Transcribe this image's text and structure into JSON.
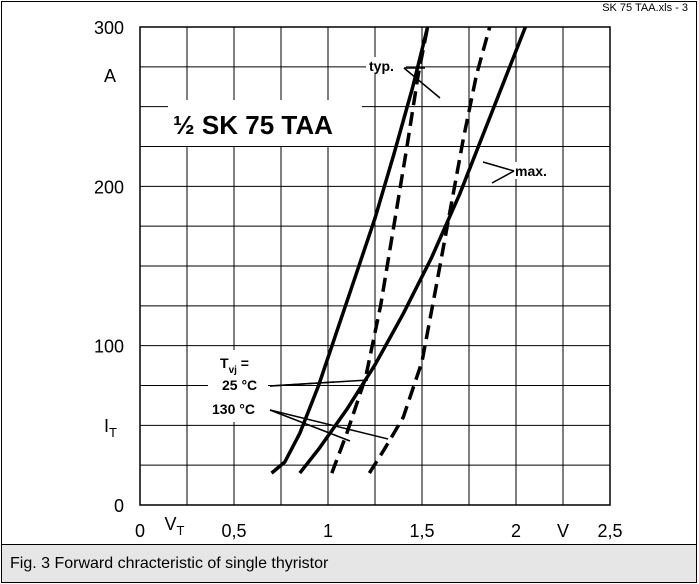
{
  "file_label": "SK 75 TAA.xls - 3",
  "caption": "Fig. 3 Forward chracteristic of single thyristor",
  "chart_data": {
    "type": "line",
    "title": "½ SK 75 TAA",
    "xlabel": "V",
    "ylabel": "A",
    "xlabel_symbol": "V",
    "xlabel_sub": "T",
    "ylabel_symbol": "I",
    "ylabel_sub": "T",
    "xlim": [
      0,
      2.5
    ],
    "ylim": [
      0,
      300
    ],
    "grid": true,
    "x_ticks": [
      {
        "value": 0,
        "label": "0"
      },
      {
        "value": 0.5,
        "label": "0,5"
      },
      {
        "value": 1.0,
        "label": "1"
      },
      {
        "value": 1.5,
        "label": "1,5"
      },
      {
        "value": 2.0,
        "label": "2"
      },
      {
        "value": 2.5,
        "label": "2,5"
      }
    ],
    "y_ticks": [
      {
        "value": 0,
        "label": "0"
      },
      {
        "value": 100,
        "label": "100"
      },
      {
        "value": 200,
        "label": "200"
      },
      {
        "value": 300,
        "label": "300"
      }
    ],
    "annotations": {
      "typ": "typ.",
      "max": "max.",
      "tvj_symbol": "T",
      "tvj_sub": "vj",
      "tvj_eq": " =",
      "t25": "25 °C",
      "t130": "130 °C"
    },
    "series": [
      {
        "style": "solid",
        "points": [
          [
            0.7,
            20
          ],
          [
            0.77,
            27
          ],
          [
            0.85,
            45
          ],
          [
            0.95,
            75
          ],
          [
            1.05,
            110
          ],
          [
            1.15,
            145
          ],
          [
            1.25,
            180
          ],
          [
            1.35,
            220
          ],
          [
            1.45,
            262
          ],
          [
            1.53,
            300
          ]
        ]
      },
      {
        "style": "dashed",
        "points": [
          [
            1.02,
            20
          ],
          [
            1.1,
            45
          ],
          [
            1.2,
            80
          ],
          [
            1.28,
            125
          ],
          [
            1.35,
            175
          ],
          [
            1.42,
            225
          ],
          [
            1.48,
            270
          ],
          [
            1.53,
            300
          ]
        ]
      },
      {
        "style": "solid",
        "points": [
          [
            0.85,
            20
          ],
          [
            0.95,
            35
          ],
          [
            1.1,
            60
          ],
          [
            1.25,
            88
          ],
          [
            1.4,
            120
          ],
          [
            1.55,
            155
          ],
          [
            1.7,
            195
          ],
          [
            1.85,
            240
          ],
          [
            2.0,
            285
          ],
          [
            2.05,
            300
          ]
        ]
      },
      {
        "style": "dashed",
        "points": [
          [
            1.22,
            20
          ],
          [
            1.3,
            35
          ],
          [
            1.4,
            55
          ],
          [
            1.5,
            90
          ],
          [
            1.58,
            140
          ],
          [
            1.65,
            185
          ],
          [
            1.72,
            230
          ],
          [
            1.79,
            270
          ],
          [
            1.86,
            300
          ]
        ]
      }
    ]
  }
}
